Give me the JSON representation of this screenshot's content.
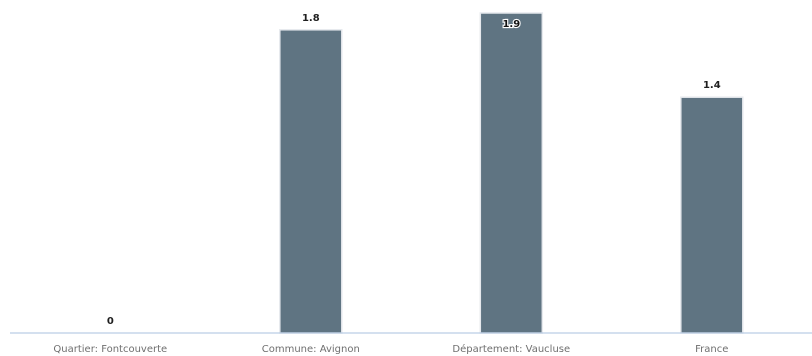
{
  "chart_data": {
    "type": "bar",
    "categories": [
      "Quartier: Fontcouverte",
      "Commune: Avignon",
      "Département: Vaucluse",
      "France"
    ],
    "values": [
      0,
      1.8,
      1.9,
      1.4
    ],
    "data_labels": [
      "0",
      "1.8",
      "1.9",
      "1.4"
    ],
    "ylim": [
      0,
      1.9
    ],
    "grid": false,
    "legend": "none",
    "colors": {
      "bar": "#5f7482",
      "axis": "#a9c1df"
    }
  }
}
